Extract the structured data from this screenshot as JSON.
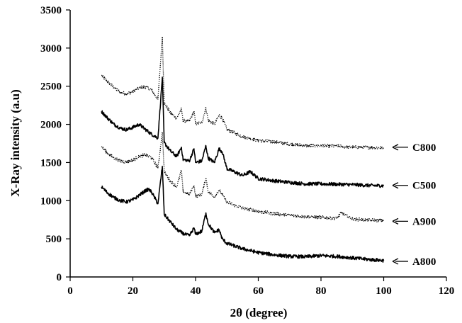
{
  "chart_data": {
    "type": "line",
    "title": "",
    "xlabel": "2θ (degree)",
    "ylabel": "X-Ray intensity (a.u)",
    "xlim": [
      0,
      120
    ],
    "ylim": [
      0,
      3500
    ],
    "xticks": [
      0,
      20,
      40,
      60,
      80,
      100,
      120
    ],
    "yticks": [
      0,
      500,
      1000,
      1500,
      2000,
      2500,
      3000,
      3500
    ],
    "grid": false,
    "legend": "inline labels with arrows at right end of each curve",
    "series": [
      {
        "name": "C800",
        "style": "dotted",
        "points": [
          [
            10,
            2640
          ],
          [
            12,
            2560
          ],
          [
            14,
            2480
          ],
          [
            16,
            2420
          ],
          [
            18,
            2400
          ],
          [
            20,
            2430
          ],
          [
            22,
            2480
          ],
          [
            24,
            2490
          ],
          [
            26,
            2450
          ],
          [
            28,
            2330
          ],
          [
            29.4,
            3150
          ],
          [
            30,
            2280
          ],
          [
            32,
            2150
          ],
          [
            34,
            2080
          ],
          [
            35.5,
            2200
          ],
          [
            36,
            2050
          ],
          [
            38,
            2040
          ],
          [
            39.5,
            2170
          ],
          [
            40,
            2010
          ],
          [
            42,
            2020
          ],
          [
            43.3,
            2220
          ],
          [
            44,
            2060
          ],
          [
            46,
            2000
          ],
          [
            47.5,
            2120
          ],
          [
            48.5,
            2080
          ],
          [
            50,
            1930
          ],
          [
            55,
            1840
          ],
          [
            60,
            1790
          ],
          [
            65,
            1770
          ],
          [
            70,
            1740
          ],
          [
            75,
            1720
          ],
          [
            80,
            1720
          ],
          [
            85,
            1715
          ],
          [
            90,
            1700
          ],
          [
            95,
            1700
          ],
          [
            100,
            1690
          ]
        ],
        "label_y": 1700
      },
      {
        "name": "C500",
        "style": "solid",
        "points": [
          [
            10,
            2170
          ],
          [
            12,
            2080
          ],
          [
            14,
            2000
          ],
          [
            16,
            1950
          ],
          [
            18,
            1930
          ],
          [
            20,
            1960
          ],
          [
            22,
            2000
          ],
          [
            23.5,
            1950
          ],
          [
            26,
            1870
          ],
          [
            28,
            1820
          ],
          [
            29.4,
            2620
          ],
          [
            30,
            1760
          ],
          [
            32,
            1650
          ],
          [
            34,
            1580
          ],
          [
            35.5,
            1700
          ],
          [
            36,
            1540
          ],
          [
            38,
            1520
          ],
          [
            39.5,
            1680
          ],
          [
            40,
            1500
          ],
          [
            42,
            1520
          ],
          [
            43.3,
            1720
          ],
          [
            44,
            1560
          ],
          [
            46,
            1500
          ],
          [
            47.5,
            1680
          ],
          [
            48.5,
            1640
          ],
          [
            50,
            1420
          ],
          [
            55,
            1330
          ],
          [
            57.5,
            1380
          ],
          [
            60,
            1290
          ],
          [
            65,
            1260
          ],
          [
            70,
            1240
          ],
          [
            75,
            1220
          ],
          [
            80,
            1220
          ],
          [
            85,
            1215
          ],
          [
            90,
            1210
          ],
          [
            95,
            1200
          ],
          [
            100,
            1195
          ]
        ],
        "label_y": 1200
      },
      {
        "name": "A900",
        "style": "dotted",
        "points": [
          [
            10,
            1710
          ],
          [
            12,
            1620
          ],
          [
            14,
            1560
          ],
          [
            16,
            1520
          ],
          [
            18,
            1510
          ],
          [
            20,
            1530
          ],
          [
            22,
            1580
          ],
          [
            24,
            1600
          ],
          [
            26,
            1560
          ],
          [
            28,
            1430
          ],
          [
            29.4,
            1900
          ],
          [
            30,
            1380
          ],
          [
            32,
            1250
          ],
          [
            34,
            1180
          ],
          [
            35.5,
            1400
          ],
          [
            36,
            1120
          ],
          [
            38,
            1080
          ],
          [
            39.5,
            1200
          ],
          [
            40,
            1060
          ],
          [
            42,
            1080
          ],
          [
            43.3,
            1300
          ],
          [
            44,
            1120
          ],
          [
            46,
            1050
          ],
          [
            47.5,
            1140
          ],
          [
            48.5,
            1080
          ],
          [
            50,
            980
          ],
          [
            55,
            900
          ],
          [
            60,
            860
          ],
          [
            65,
            830
          ],
          [
            70,
            810
          ],
          [
            75,
            790
          ],
          [
            80,
            780
          ],
          [
            85,
            770
          ],
          [
            86.5,
            840
          ],
          [
            90,
            760
          ],
          [
            95,
            745
          ],
          [
            100,
            740
          ]
        ],
        "label_y": 730
      },
      {
        "name": "A800",
        "style": "solid",
        "points": [
          [
            10,
            1180
          ],
          [
            12,
            1100
          ],
          [
            14,
            1040
          ],
          [
            16,
            1000
          ],
          [
            18,
            985
          ],
          [
            20,
            1010
          ],
          [
            22,
            1070
          ],
          [
            24,
            1130
          ],
          [
            25,
            1150
          ],
          [
            26,
            1110
          ],
          [
            28,
            960
          ],
          [
            29.4,
            1450
          ],
          [
            30,
            820
          ],
          [
            32,
            720
          ],
          [
            34,
            620
          ],
          [
            36,
            570
          ],
          [
            38,
            540
          ],
          [
            39.5,
            640
          ],
          [
            40,
            560
          ],
          [
            42,
            600
          ],
          [
            43.3,
            840
          ],
          [
            44,
            700
          ],
          [
            46,
            580
          ],
          [
            47.5,
            620
          ],
          [
            48.5,
            500
          ],
          [
            50,
            440
          ],
          [
            55,
            370
          ],
          [
            60,
            320
          ],
          [
            65,
            290
          ],
          [
            70,
            270
          ],
          [
            75,
            265
          ],
          [
            80,
            280
          ],
          [
            85,
            270
          ],
          [
            90,
            250
          ],
          [
            95,
            230
          ],
          [
            100,
            215
          ]
        ],
        "label_y": 205
      }
    ]
  }
}
